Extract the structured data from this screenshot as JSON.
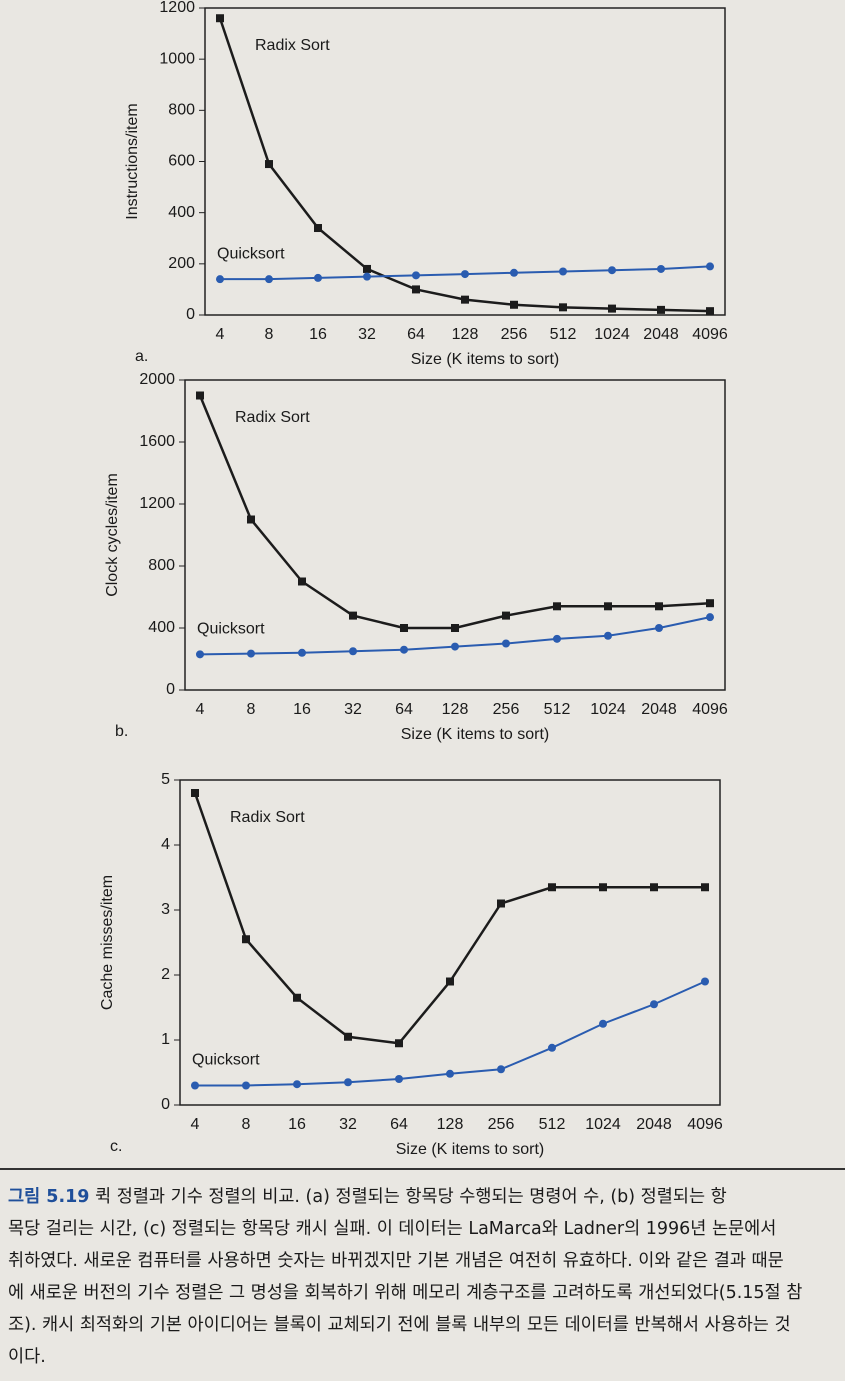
{
  "chart_data": [
    {
      "type": "line",
      "label": "a.",
      "x_label": "Size (K items to sort)",
      "y_label": "Instructions/item",
      "categories": [
        "4",
        "8",
        "16",
        "32",
        "64",
        "128",
        "256",
        "512",
        "1024",
        "2048",
        "4096"
      ],
      "series": [
        {
          "name": "Radix Sort",
          "color": "#1c1c1c",
          "marker": "square",
          "values": [
            1160,
            590,
            340,
            180,
            100,
            60,
            40,
            30,
            25,
            20,
            15
          ]
        },
        {
          "name": "Quicksort",
          "color": "#2a5cb0",
          "marker": "circle",
          "values": [
            140,
            140,
            145,
            150,
            155,
            160,
            165,
            170,
            175,
            180,
            190
          ]
        }
      ],
      "ylim": [
        0,
        1200
      ],
      "yticks": [
        0,
        200,
        400,
        600,
        800,
        1000,
        1200
      ]
    },
    {
      "type": "line",
      "label": "b.",
      "x_label": "Size (K items to sort)",
      "y_label": "Clock cycles/item",
      "categories": [
        "4",
        "8",
        "16",
        "32",
        "64",
        "128",
        "256",
        "512",
        "1024",
        "2048",
        "4096"
      ],
      "series": [
        {
          "name": "Radix Sort",
          "color": "#1c1c1c",
          "marker": "square",
          "values": [
            1900,
            1100,
            700,
            480,
            400,
            400,
            480,
            540,
            540,
            540,
            560
          ]
        },
        {
          "name": "Quicksort",
          "color": "#2a5cb0",
          "marker": "circle",
          "values": [
            230,
            235,
            240,
            250,
            260,
            280,
            300,
            330,
            350,
            400,
            470
          ]
        }
      ],
      "ylim": [
        0,
        2000
      ],
      "yticks": [
        0,
        400,
        800,
        1200,
        1600,
        2000
      ]
    },
    {
      "type": "line",
      "label": "c.",
      "x_label": "Size (K items to sort)",
      "y_label": "Cache misses/item",
      "categories": [
        "4",
        "8",
        "16",
        "32",
        "64",
        "128",
        "256",
        "512",
        "1024",
        "2048",
        "4096"
      ],
      "series": [
        {
          "name": "Radix Sort",
          "color": "#1c1c1c",
          "marker": "square",
          "values": [
            4.8,
            2.55,
            1.65,
            1.05,
            0.95,
            1.9,
            3.1,
            3.35,
            3.35,
            3.35,
            3.35
          ]
        },
        {
          "name": "Quicksort",
          "color": "#2a5cb0",
          "marker": "circle",
          "values": [
            0.3,
            0.3,
            0.32,
            0.35,
            0.4,
            0.48,
            0.55,
            0.88,
            1.25,
            1.55,
            1.9
          ]
        }
      ],
      "ylim": [
        0,
        5
      ],
      "yticks": [
        0,
        1,
        2,
        3,
        4,
        5
      ]
    }
  ],
  "caption": {
    "figure": "그림 5.19",
    "lines": [
      "퀵 정렬과 기수 정렬의 비교. (a) 정렬되는 항목당 수행되는 명령어 수, (b) 정렬되는 항",
      "목당 걸리는 시간, (c) 정렬되는 항목당 캐시 실패. 이 데이터는 LaMarca와 Ladner의 1996년 논문에서",
      "취하였다. 새로운 컴퓨터를 사용하면 숫자는 바뀌겠지만 기본 개념은 여전히 유효하다. 이와 같은 결과 때문",
      "에 새로운 버전의 기수 정렬은 그 명성을 회복하기 위해 메모리 계층구조를 고려하도록 개선되었다(5.15절 참",
      "조). 캐시 최적화의 기본 아이디어는 블록이 교체되기 전에 블록 내부의 모든 데이터를 반복해서 사용하는 것",
      "이다."
    ]
  }
}
